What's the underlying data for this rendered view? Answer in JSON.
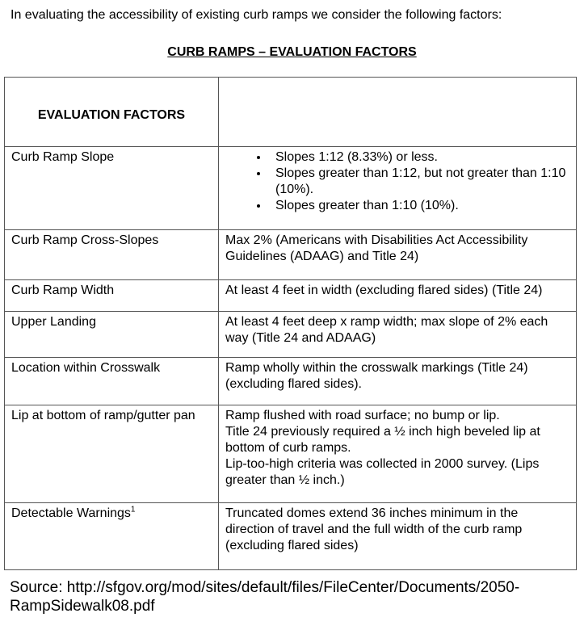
{
  "intro": "In evaluating the accessibility of existing curb ramps we consider the following factors:",
  "title": "CURB RAMPS – EVALUATION FACTORS",
  "table": {
    "header": [
      "EVALUATION FACTORS",
      ""
    ],
    "rows": [
      {
        "factor": "Curb Ramp Slope",
        "bullets": [
          "Slopes 1:12 (8.33%) or less.",
          "Slopes greater than 1:12, but not greater than 1:10 (10%).",
          "Slopes greater than 1:10 (10%)."
        ]
      },
      {
        "factor": "Curb Ramp Cross-Slopes",
        "text": [
          "Max 2% (Americans with Disabilities Act Accessibility Guidelines (ADAAG) and Title 24)"
        ]
      },
      {
        "factor": "Curb Ramp Width",
        "text": [
          "At least 4 feet in width (excluding flared sides) (Title 24)"
        ]
      },
      {
        "factor": "Upper Landing",
        "text": [
          "At least 4 feet deep x ramp width; max slope of 2% each way (Title 24 and ADAAG)"
        ]
      },
      {
        "factor": "Location within Crosswalk",
        "text": [
          "Ramp wholly within the crosswalk markings (Title 24) (excluding flared sides)."
        ]
      },
      {
        "factor": "Lip at bottom of ramp/gutter pan",
        "text": [
          "Ramp flushed with road surface; no bump or lip.",
          "Title 24 previously required a ½ inch high beveled lip at bottom of curb ramps.",
          "Lip-too-high criteria was collected in 2000 survey. (Lips greater than ½ inch.)"
        ]
      },
      {
        "factor": "Detectable Warnings",
        "footnote": "1",
        "text": [
          "Truncated domes extend 36 inches minimum in the direction of travel and the full width of the curb ramp (excluding flared sides)"
        ]
      }
    ]
  },
  "source": "Source: http://sfgov.org/mod/sites/default/files/FileCenter/Documents/2050-RampSidewalk08.pdf"
}
